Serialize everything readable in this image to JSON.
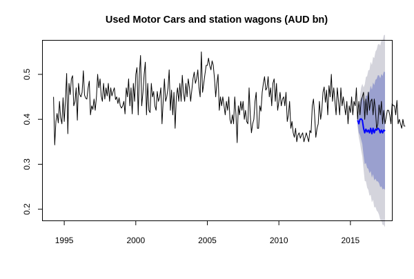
{
  "chart_data": {
    "type": "line",
    "title": "Used Motor Cars and station wagons (AUD bn)",
    "xlabel": "",
    "ylabel": "",
    "xlim": [
      1993.5,
      2017.9
    ],
    "ylim": [
      0.175,
      0.575
    ],
    "x_ticks": [
      1995,
      2000,
      2005,
      2010,
      2015
    ],
    "y_ticks": [
      0.2,
      0.3,
      0.4,
      0.5
    ],
    "grid": false,
    "legend": "none",
    "series": [
      {
        "role": "observed",
        "color": "#000000",
        "x_start": 1994.25,
        "step": 0.083333,
        "values": [
          0.45,
          0.343,
          0.395,
          0.413,
          0.392,
          0.44,
          0.404,
          0.39,
          0.448,
          0.395,
          0.44,
          0.502,
          0.368,
          0.48,
          0.455,
          0.49,
          0.497,
          0.43,
          0.44,
          0.47,
          0.398,
          0.48,
          0.455,
          0.45,
          0.46,
          0.508,
          0.454,
          0.447,
          0.445,
          0.47,
          0.485,
          0.41,
          0.43,
          0.422,
          0.445,
          0.42,
          0.45,
          0.5,
          0.47,
          0.49,
          0.452,
          0.44,
          0.48,
          0.445,
          0.47,
          0.452,
          0.48,
          0.44,
          0.47,
          0.452,
          0.462,
          0.47,
          0.444,
          0.45,
          0.435,
          0.448,
          0.43,
          0.425,
          0.43,
          0.44,
          0.412,
          0.47,
          0.45,
          0.49,
          0.43,
          0.47,
          0.412,
          0.48,
          0.44,
          0.5,
          0.515,
          0.41,
          0.5,
          0.542,
          0.43,
          0.46,
          0.5,
          0.527,
          0.41,
          0.48,
          0.42,
          0.415,
          0.48,
          0.45,
          0.462,
          0.43,
          0.42,
          0.462,
          0.44,
          0.45,
          0.47,
          0.39,
          0.44,
          0.49,
          0.44,
          0.45,
          0.47,
          0.51,
          0.42,
          0.465,
          0.41,
          0.46,
          0.38,
          0.45,
          0.47,
          0.44,
          0.48,
          0.44,
          0.498,
          0.46,
          0.44,
          0.48,
          0.45,
          0.49,
          0.47,
          0.44,
          0.465,
          0.49,
          0.505,
          0.48,
          0.49,
          0.51,
          0.47,
          0.45,
          0.55,
          0.46,
          0.48,
          0.5,
          0.52,
          0.52,
          0.536,
          0.52,
          0.51,
          0.53,
          0.52,
          0.49,
          0.45,
          0.48,
          0.5,
          0.42,
          0.45,
          0.43,
          0.45,
          0.43,
          0.41,
          0.44,
          0.42,
          0.45,
          0.4,
          0.39,
          0.41,
          0.39,
          0.45,
          0.41,
          0.348,
          0.43,
          0.41,
          0.44,
          0.42,
          0.44,
          0.4,
          0.42,
          0.395,
          0.39,
          0.47,
          0.41,
          0.37,
          0.39,
          0.4,
          0.44,
          0.46,
          0.38,
          0.38,
          0.43,
          0.418,
          0.46,
          0.48,
          0.495,
          0.465,
          0.47,
          0.495,
          0.45,
          0.47,
          0.43,
          0.48,
          0.49,
          0.44,
          0.48,
          0.42,
          0.44,
          0.46,
          0.43,
          0.445,
          0.45,
          0.43,
          0.46,
          0.395,
          0.41,
          0.44,
          0.38,
          0.395,
          0.37,
          0.36,
          0.38,
          0.35,
          0.365,
          0.37,
          0.358,
          0.365,
          0.37,
          0.35,
          0.36,
          0.37,
          0.36,
          0.35,
          0.375,
          0.37,
          0.43,
          0.445,
          0.408,
          0.36,
          0.38,
          0.39,
          0.44,
          0.4,
          0.42,
          0.46,
          0.472,
          0.438,
          0.465,
          0.41,
          0.475,
          0.45,
          0.5,
          0.44,
          0.47,
          0.44,
          0.41,
          0.47,
          0.44,
          0.41,
          0.47,
          0.43,
          0.45,
          0.43,
          0.41,
          0.44,
          0.39,
          0.43,
          0.415,
          0.45,
          0.41,
          0.44,
          0.43,
          0.47,
          0.4,
          0.44,
          0.41,
          0.442,
          0.45,
          0.46,
          0.4,
          0.445,
          0.41,
          0.46,
          0.42,
          0.44,
          0.445,
          0.41,
          0.445,
          0.42,
          0.38,
          0.39,
          0.432,
          0.41,
          0.44,
          0.39,
          0.42,
          0.39,
          0.405,
          0.42,
          0.42,
          0.41,
          0.39,
          0.435,
          0.43,
          0.43,
          0.41,
          0.442,
          0.39,
          0.4,
          0.39,
          0.38,
          0.4,
          0.385,
          0.385
        ]
      },
      {
        "role": "forecast",
        "color": "#0000ff",
        "x_start": 2015.5,
        "step": 0.083333,
        "values": [
          0.398,
          0.39,
          0.4,
          0.401,
          0.398,
          0.38,
          0.37,
          0.378,
          0.372,
          0.376,
          0.37,
          0.38,
          0.368,
          0.38,
          0.37,
          0.378,
          0.376,
          0.38,
          0.378,
          0.37,
          0.376,
          0.37,
          0.376,
          0.374
        ],
        "pi80_lower": [
          0.39,
          0.37,
          0.365,
          0.355,
          0.345,
          0.32,
          0.3,
          0.303,
          0.292,
          0.29,
          0.28,
          0.285,
          0.27,
          0.278,
          0.264,
          0.268,
          0.262,
          0.262,
          0.258,
          0.249,
          0.251,
          0.244,
          0.246,
          0.243
        ],
        "pi80_upper": [
          0.406,
          0.41,
          0.435,
          0.447,
          0.451,
          0.44,
          0.44,
          0.453,
          0.452,
          0.462,
          0.46,
          0.475,
          0.466,
          0.482,
          0.476,
          0.488,
          0.49,
          0.498,
          0.498,
          0.491,
          0.501,
          0.496,
          0.506,
          0.505
        ],
        "pi95_lower": [
          0.384,
          0.36,
          0.347,
          0.331,
          0.317,
          0.289,
          0.263,
          0.262,
          0.248,
          0.243,
          0.23,
          0.232,
          0.215,
          0.221,
          0.204,
          0.205,
          0.197,
          0.194,
          0.188,
          0.176,
          0.175,
          0.165,
          0.165,
          0.16
        ],
        "pi95_upper": [
          0.412,
          0.42,
          0.453,
          0.471,
          0.479,
          0.471,
          0.477,
          0.494,
          0.496,
          0.509,
          0.51,
          0.528,
          0.521,
          0.539,
          0.536,
          0.551,
          0.555,
          0.566,
          0.568,
          0.564,
          0.577,
          0.575,
          0.587,
          0.588
        ],
        "pi80_color": "#9aa0cf",
        "pi95_color": "#d4d4dc"
      }
    ]
  }
}
